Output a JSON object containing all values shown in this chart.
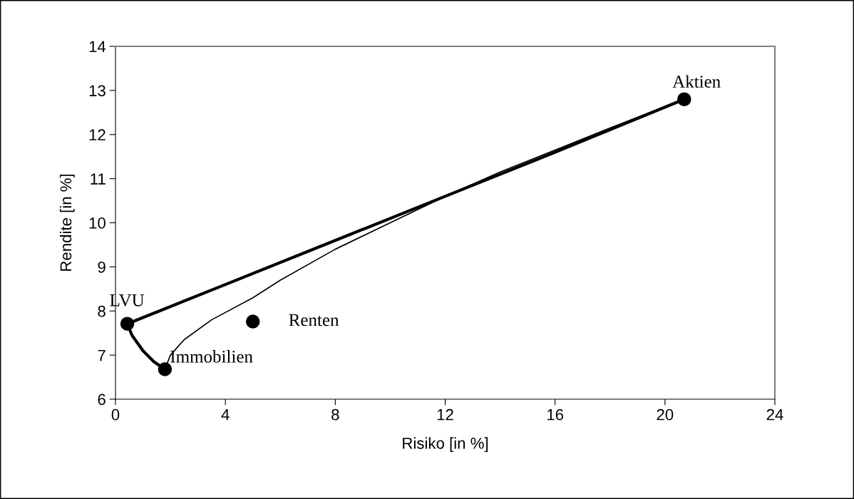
{
  "chart_data": {
    "type": "line",
    "xlabel": "Risiko [in %]",
    "ylabel": "Rendite [in %]",
    "xlim": [
      0,
      24
    ],
    "xticks": [
      0,
      4,
      8,
      12,
      16,
      20,
      24
    ],
    "ylim": [
      6,
      14
    ],
    "yticks": [
      6,
      7,
      8,
      9,
      10,
      11,
      12,
      13,
      14
    ],
    "grid": false,
    "marker": "none",
    "line_style": "solid",
    "series": [
      {
        "color": "#000000",
        "x": [
          0.43,
          4,
          8,
          12,
          16,
          20.7
        ],
        "values": [
          7.71,
          8.6,
          9.6,
          10.6,
          11.6,
          12.8
        ]
      },
      {
        "color": "#000000",
        "x": [
          0.43,
          0.6,
          1.0,
          1.4,
          1.8
        ],
        "values": [
          7.71,
          7.45,
          7.1,
          6.85,
          6.68
        ]
      },
      {
        "color": "#000000",
        "x": [
          1.8,
          2.0,
          2.5,
          3.5,
          5,
          6,
          8,
          10,
          12,
          14,
          16,
          18,
          20.7
        ],
        "values": [
          6.68,
          7.0,
          7.35,
          7.8,
          8.3,
          8.7,
          9.4,
          10.0,
          10.6,
          11.15,
          11.65,
          12.15,
          12.8
        ]
      },
      {
        "type": "scatter",
        "color": "#000000",
        "marker": "circle",
        "x": [
          20.7,
          0.43,
          5.0,
          1.8
        ],
        "values": [
          12.8,
          7.71,
          7.76,
          6.68
        ]
      }
    ],
    "annotations": [
      {
        "text": "Aktien",
        "x": 20.7,
        "y": 12.8
      },
      {
        "text": "LVU",
        "x": 0.43,
        "y": 7.71
      },
      {
        "text": "Renten",
        "x": 5.0,
        "y": 7.76
      },
      {
        "text": "Immobilien",
        "x": 1.8,
        "y": 6.68
      }
    ]
  }
}
